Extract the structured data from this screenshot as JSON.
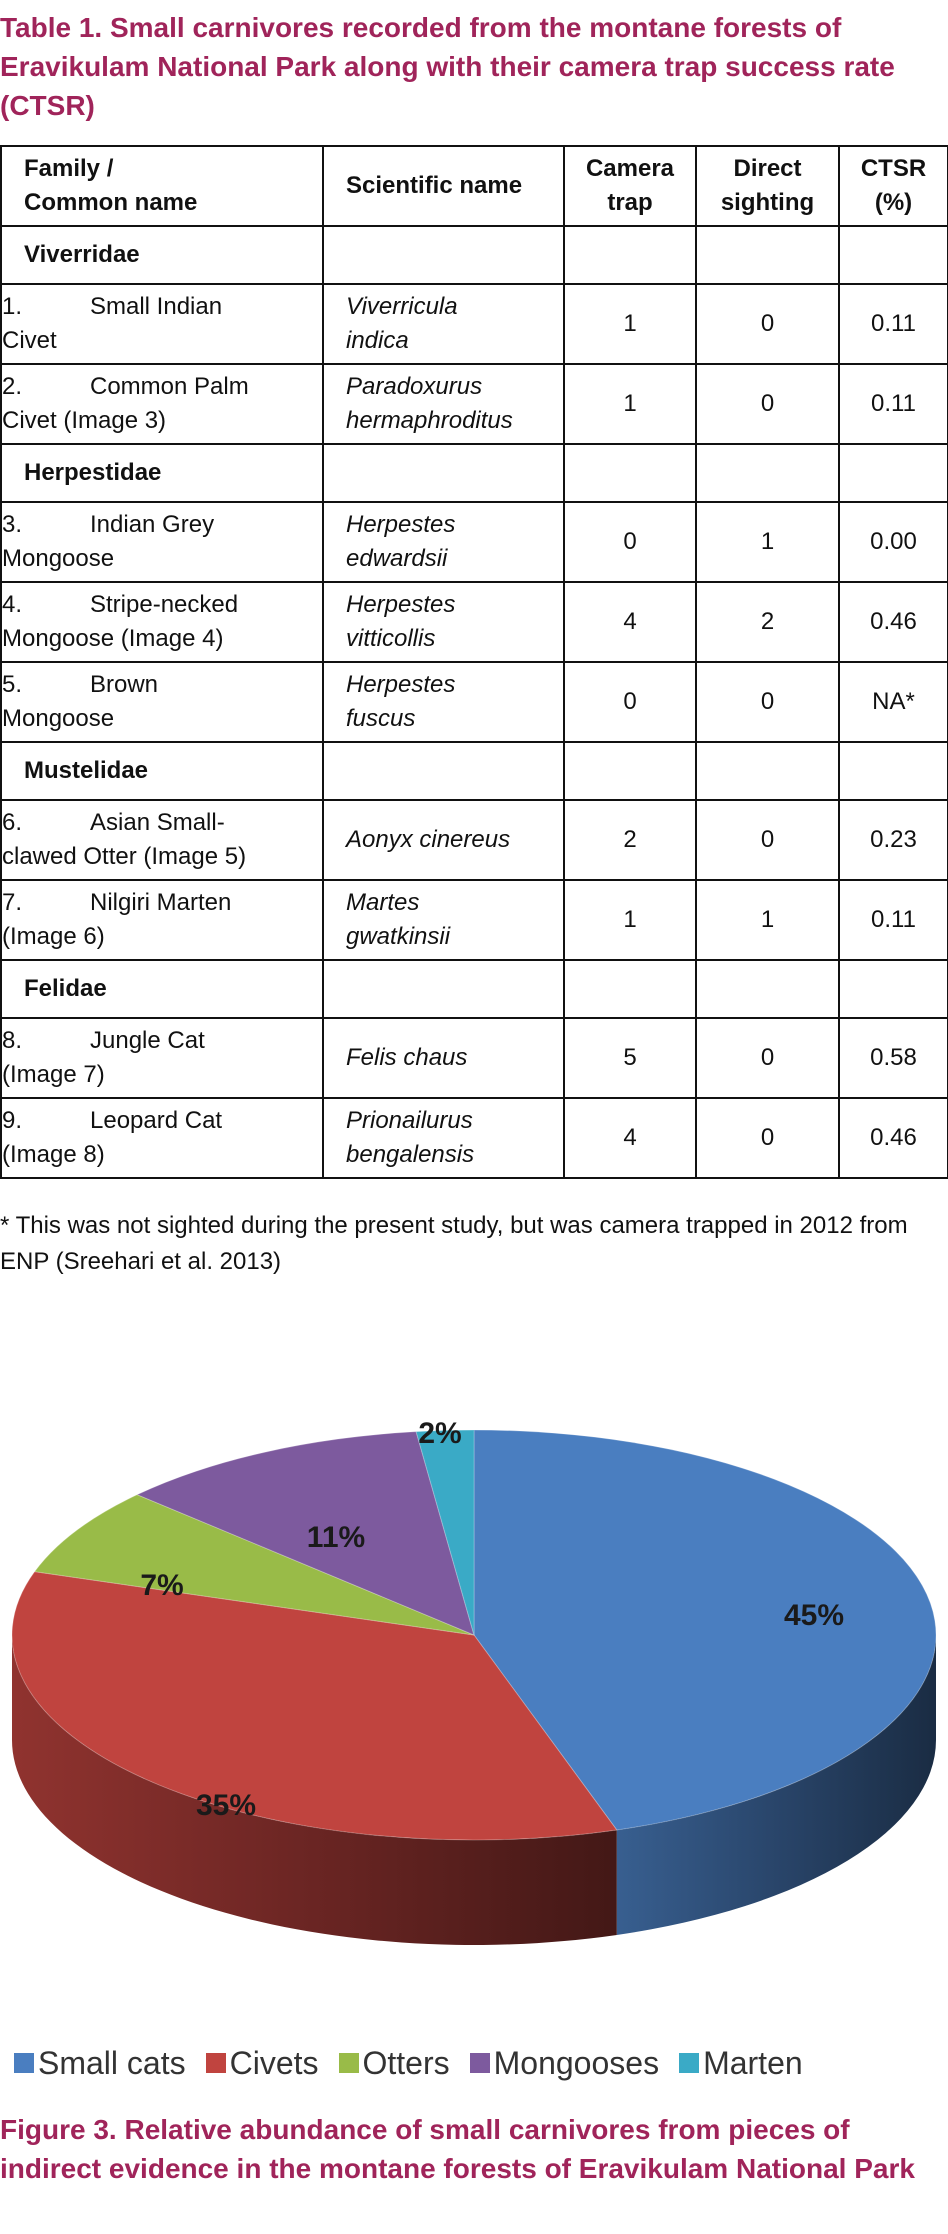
{
  "table_caption": "Table 1. Small carnivores recorded from the montane forests of Eravikulam National Park along with their camera trap success rate (CTSR)",
  "table": {
    "headers": {
      "family_common": [
        "Family /",
        "Common name"
      ],
      "scientific": "Scientific name",
      "camera": [
        "Camera",
        "trap"
      ],
      "direct": [
        "Direct",
        "sighting"
      ],
      "ctsr": [
        "CTSR",
        "(%)"
      ]
    },
    "groups": [
      {
        "family": "Viverridae",
        "rows": [
          {
            "num": "1.",
            "common": [
              "Small Indian",
              "Civet"
            ],
            "sci": [
              "Viverricula",
              "indica"
            ],
            "camera": "1",
            "direct": "0",
            "ctsr": "0.11"
          },
          {
            "num": "2.",
            "common": [
              "Common Palm",
              "Civet (Image 3)"
            ],
            "sci": [
              "Paradoxurus",
              "hermaphroditus"
            ],
            "camera": "1",
            "direct": "0",
            "ctsr": "0.11"
          }
        ]
      },
      {
        "family": "Herpestidae",
        "rows": [
          {
            "num": "3.",
            "common": [
              "Indian Grey",
              "Mongoose"
            ],
            "sci": [
              "Herpestes",
              "edwardsii"
            ],
            "camera": "0",
            "direct": "1",
            "ctsr": "0.00"
          },
          {
            "num": "4.",
            "common": [
              "Stripe-necked",
              "Mongoose (Image 4)"
            ],
            "sci": [
              "Herpestes",
              "vitticollis"
            ],
            "camera": "4",
            "direct": "2",
            "ctsr": "0.46"
          },
          {
            "num": "5.",
            "common": [
              "Brown",
              "Mongoose"
            ],
            "sci": [
              "Herpestes",
              "fuscus"
            ],
            "camera": "0",
            "direct": "0",
            "ctsr": "NA*"
          }
        ]
      },
      {
        "family": "Mustelidae",
        "rows": [
          {
            "num": "6.",
            "common": [
              "Asian Small-",
              "clawed Otter (Image 5)"
            ],
            "sci": [
              "Aonyx cinereus",
              ""
            ],
            "camera": "2",
            "direct": "0",
            "ctsr": "0.23"
          },
          {
            "num": "7.",
            "common": [
              "Nilgiri Marten",
              "(Image 6)"
            ],
            "sci": [
              "Martes",
              "gwatkinsii"
            ],
            "camera": "1",
            "direct": "1",
            "ctsr": "0.11"
          }
        ]
      },
      {
        "family": "Felidae",
        "rows": [
          {
            "num": "8.",
            "common": [
              "Jungle Cat",
              "(Image 7)"
            ],
            "sci": [
              "Felis chaus",
              ""
            ],
            "camera": "5",
            "direct": "0",
            "ctsr": "0.58"
          },
          {
            "num": "9.",
            "common": [
              "Leopard Cat",
              "(Image 8)"
            ],
            "sci": [
              "Prionailurus",
              "bengalensis"
            ],
            "camera": "4",
            "direct": "0",
            "ctsr": "0.46"
          }
        ]
      }
    ]
  },
  "footnote": "* This was not sighted during the present study, but was camera trapped in 2012 from ENP (Sreehari et al. 2013)",
  "chart_data": {
    "type": "pie",
    "categories": [
      "Small cats",
      "Civets",
      "Otters",
      "Mongooses",
      "Marten"
    ],
    "values": [
      45,
      35,
      7,
      11,
      2
    ],
    "labels": [
      "45%",
      "35%",
      "7%",
      "11%",
      "2%"
    ],
    "colors": [
      "#4a7ec0",
      "#c0443f",
      "#99bb48",
      "#7d5a9e",
      "#3aaac6"
    ],
    "legend_position": "bottom",
    "style": "3d"
  },
  "figure_caption": "Figure 3. Relative abundance of small carnivores from pieces of indirect evidence in the montane forests of Eravikulam National Park"
}
